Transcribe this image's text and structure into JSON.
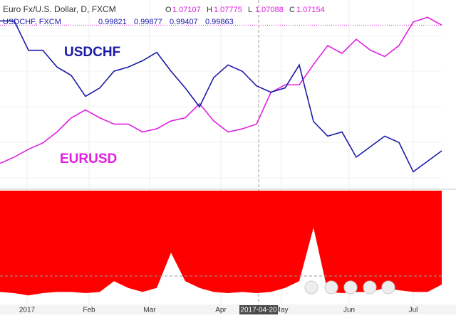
{
  "header": {
    "symbol": "Euro Fx/U.S. Dollar, D, FXCM",
    "ohlc": [
      {
        "label": "O",
        "value": 1.07107
      },
      {
        "label": "H",
        "value": 1.07775
      },
      {
        "label": "L",
        "value": 1.07088
      },
      {
        "label": "C",
        "value": 1.07154
      }
    ],
    "compare": {
      "symbol": "USDCHF, FXCM",
      "values": [
        0.99821,
        0.99877,
        0.99407,
        0.99863
      ]
    }
  },
  "chart_data": [
    {
      "type": "line",
      "x": [
        0,
        1,
        2,
        3,
        4,
        5,
        6,
        7,
        8,
        9,
        10,
        11,
        12,
        13,
        14,
        15,
        16,
        17,
        18,
        19,
        20,
        21,
        22,
        23,
        24,
        25,
        26,
        27,
        28,
        29,
        30,
        31
      ],
      "xlim": [
        0,
        31
      ],
      "xticks": [
        {
          "value": 1.9,
          "label": "2017"
        },
        {
          "value": 6.25,
          "label": "Feb"
        },
        {
          "value": 10.5,
          "label": "Mar"
        },
        {
          "value": 15.5,
          "label": "Apr"
        },
        {
          "value": 19.75,
          "label": "May"
        },
        {
          "value": 24.5,
          "label": "Jun"
        },
        {
          "value": 29,
          "label": "Jul"
        }
      ],
      "crosshair": {
        "value": 18.15,
        "label": "2017-04-20"
      },
      "ylim": [
        1.03,
        1.15
      ],
      "y2lim": [
        0.94,
        1.03
      ],
      "grid": true,
      "series": [
        {
          "name": "EURUSD",
          "color": "#e020e0",
          "values": [
            1.046,
            1.05,
            1.055,
            1.059,
            1.066,
            1.075,
            1.08,
            1.075,
            1.071,
            1.071,
            1.066,
            1.068,
            1.073,
            1.075,
            1.084,
            1.073,
            1.066,
            1.068,
            1.071,
            1.091,
            1.096,
            1.096,
            1.109,
            1.121,
            1.116,
            1.125,
            1.118,
            1.114,
            1.121,
            1.136,
            1.139,
            1.134
          ]
        },
        {
          "name": "USDCHF",
          "color": "#1a1aa8",
          "axis": "y2",
          "values": [
            1.02,
            1.02,
            1.006,
            1.006,
            0.998,
            0.994,
            0.984,
            0.988,
            0.996,
            0.998,
            1.001,
            1.005,
            0.996,
            0.988,
            0.979,
            0.993,
            0.999,
            0.996,
            0.989,
            0.986,
            0.988,
            0.999,
            0.972,
            0.965,
            0.967,
            0.955,
            0.96,
            0.965,
            0.962,
            0.948,
            0.953,
            0.958
          ]
        }
      ]
    },
    {
      "type": "area",
      "x": [
        0,
        1,
        2,
        3,
        4,
        5,
        6,
        7,
        8,
        9,
        10,
        11,
        12,
        13,
        14,
        15,
        16,
        17,
        18,
        19,
        20,
        21,
        22,
        23,
        24,
        25,
        26,
        27,
        28,
        29,
        30,
        31
      ],
      "xlim": [
        0,
        31
      ],
      "ylim": [
        -1,
        1
      ],
      "level": -0.5,
      "color": "#ff0000",
      "values": [
        -0.78,
        -0.8,
        -0.84,
        -0.8,
        -0.78,
        -0.78,
        -0.8,
        -0.78,
        -0.59,
        -0.71,
        -0.78,
        -0.71,
        -0.09,
        -0.59,
        -0.71,
        -0.78,
        -0.8,
        -0.78,
        -0.8,
        -0.78,
        -0.71,
        -0.59,
        0.35,
        -0.78,
        -0.8,
        -0.78,
        -0.78,
        -0.71,
        -0.75,
        -0.78,
        -0.78,
        -0.65
      ]
    }
  ]
}
